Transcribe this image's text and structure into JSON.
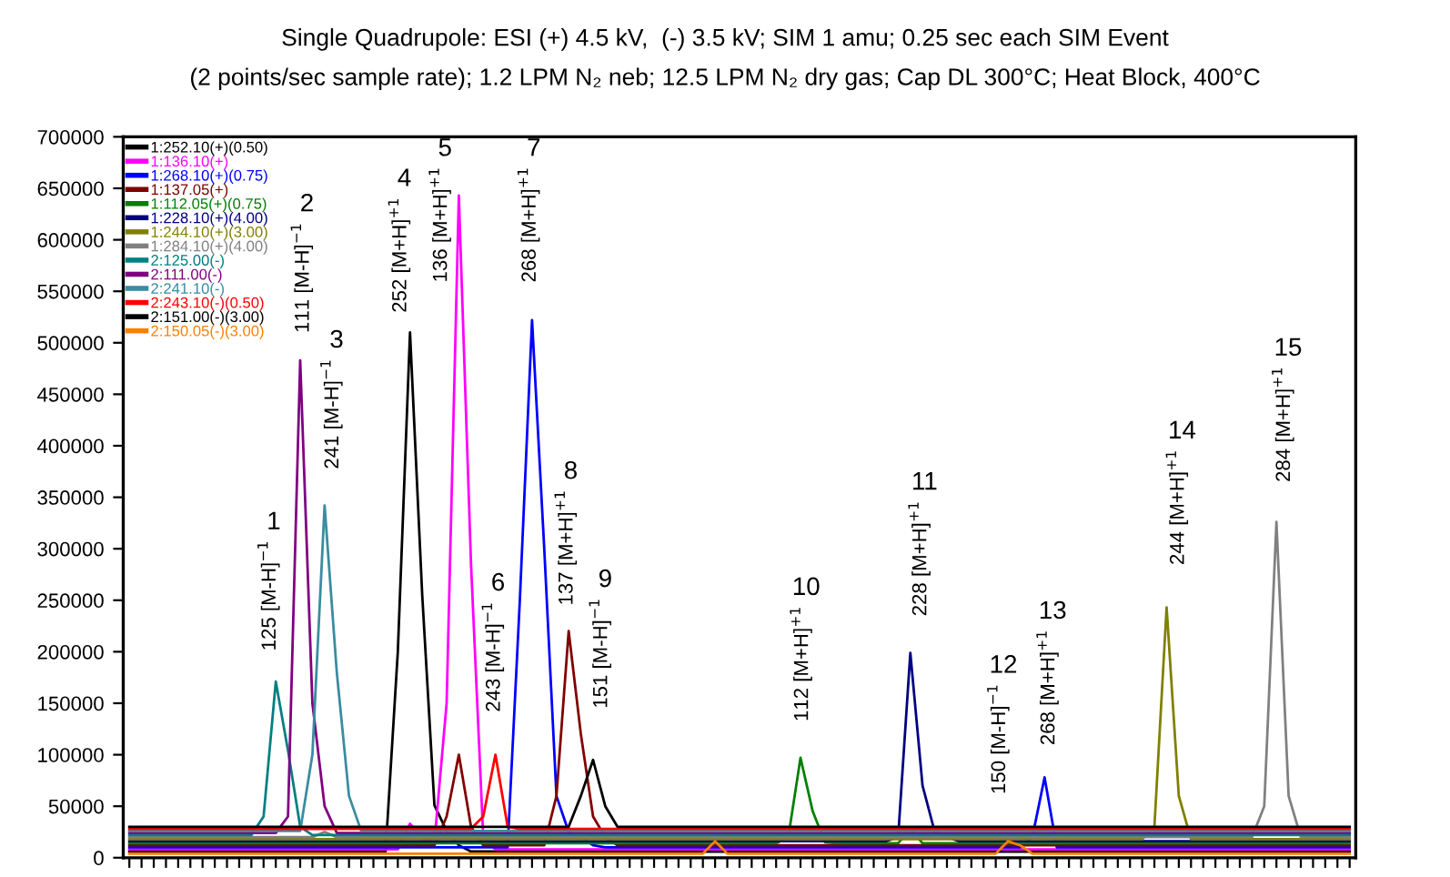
{
  "chart_data": {
    "type": "line",
    "title": "Single Quadrupole: ESI (+) 4.5 kV,  (-) 3.5 kV; SIM 1 amu; 0.25 sec each SIM Event",
    "subtitle": "(2 points/sec sample rate); 1.2 LPM N₂ neb; 12.5 LPM N₂ dry gas; Cap DL 300°C; Heat Block, 400°C",
    "categories": [
      null,
      null,
      null,
      null,
      null,
      null,
      null,
      null,
      null,
      null,
      null,
      null,
      null,
      null,
      null,
      null,
      null,
      null,
      null,
      null,
      null,
      null,
      null,
      null,
      null,
      null,
      null,
      null,
      null,
      null,
      null,
      null,
      null,
      null,
      null,
      null,
      null,
      null,
      null,
      null,
      null,
      null,
      null,
      null,
      null,
      null,
      null,
      null,
      null,
      null,
      null,
      null,
      null,
      null,
      null,
      null,
      null,
      null,
      null,
      null,
      null,
      null,
      null,
      null,
      null,
      null,
      null,
      null,
      null,
      null,
      null,
      null,
      null,
      null,
      null,
      null,
      null,
      null,
      null,
      null,
      null,
      null,
      null,
      null,
      null,
      null,
      null,
      null,
      null,
      null,
      null,
      null,
      null,
      null,
      null,
      null,
      null,
      null,
      null,
      null,
      null
    ],
    "ylim": [
      0,
      700000
    ],
    "yticks": [
      0,
      50000,
      100000,
      150000,
      200000,
      250000,
      300000,
      350000,
      400000,
      450000,
      500000,
      550000,
      600000,
      650000,
      700000
    ],
    "tick_labels": "y",
    "grid": false,
    "legend": "top left",
    "marker": "none",
    "line_style": "solid",
    "series": [
      {
        "name": "1:252.10(+)(0.50)",
        "color": "#000000",
        "values": [
          6000,
          6000,
          6000,
          6000,
          6000,
          6000,
          6000,
          6000,
          6000,
          6000,
          6000,
          6000,
          6000,
          6000,
          6000,
          6000,
          6000,
          6000,
          6000,
          6000,
          6000,
          6000,
          200000,
          510000,
          255000,
          51000,
          26000,
          12000,
          6000,
          6000,
          6000,
          6000,
          6000,
          6000,
          6000,
          6000,
          6000,
          6000,
          6000,
          6000,
          6000,
          6000,
          6000,
          6000,
          6000,
          6000,
          6000,
          6000,
          6000,
          6000,
          6000,
          6000,
          6000,
          6000,
          6000,
          6000,
          6000,
          6000,
          6000,
          6000,
          6000,
          6000,
          6000,
          6000,
          6000,
          6000,
          6000,
          6000,
          6000,
          6000,
          6000,
          6000,
          6000,
          6000,
          6000,
          6000,
          6000,
          6000,
          6000,
          6000,
          6000,
          6000,
          6000,
          6000,
          6000,
          6000,
          6000,
          6000,
          6000,
          6000,
          6000,
          6000,
          6000,
          6000,
          6000,
          6000,
          6000,
          6000,
          6000,
          6000,
          6000
        ]
      },
      {
        "name": "1:136.10(+)",
        "color": "#ff00ff",
        "values": [
          8000,
          8000,
          8000,
          8000,
          8000,
          8000,
          8000,
          8000,
          8000,
          8000,
          8000,
          8000,
          8000,
          8000,
          8000,
          8000,
          8000,
          8000,
          8000,
          8000,
          8000,
          8000,
          8000,
          33000,
          18000,
          15000,
          150000,
          643000,
          285000,
          20000,
          8000,
          8000,
          8000,
          8000,
          8000,
          8000,
          8000,
          8000,
          8000,
          8000,
          8000,
          8000,
          8000,
          8000,
          8000,
          8000,
          8000,
          8000,
          8000,
          8000,
          8000,
          8000,
          8000,
          8000,
          8000,
          8000,
          8000,
          8000,
          8000,
          8000,
          8000,
          8000,
          8000,
          8000,
          8000,
          8000,
          8000,
          8000,
          8000,
          8000,
          8000,
          8000,
          8000,
          8000,
          8000,
          8000,
          8000,
          8000,
          8000,
          8000,
          8000,
          8000,
          8000,
          8000,
          8000,
          8000,
          8000,
          8000,
          8000,
          8000,
          8000,
          8000,
          8000,
          8000,
          8000,
          8000,
          8000,
          8000,
          8000,
          8000,
          8000
        ]
      },
      {
        "name": "1:268.10(+)(0.75)",
        "color": "#0000ff",
        "values": [
          10000,
          10000,
          10000,
          10000,
          10000,
          10000,
          10000,
          10000,
          10000,
          10000,
          10000,
          10000,
          10000,
          10000,
          10000,
          10000,
          10000,
          10000,
          10000,
          10000,
          10000,
          10000,
          10000,
          10000,
          10000,
          10000,
          10000,
          10000,
          10000,
          10000,
          10000,
          10000,
          250000,
          522000,
          300000,
          60000,
          25000,
          20000,
          12000,
          10000,
          10000,
          10000,
          10000,
          10000,
          10000,
          10000,
          10000,
          10000,
          10000,
          10000,
          10000,
          10000,
          10000,
          10000,
          10000,
          10000,
          10000,
          10000,
          10000,
          10000,
          10000,
          10000,
          10000,
          10000,
          10000,
          10000,
          10000,
          10000,
          10000,
          10000,
          10000,
          10000,
          10000,
          10000,
          20000,
          78000,
          10000,
          10000,
          10000,
          10000,
          10000,
          10000,
          10000,
          10000,
          10000,
          10000,
          10000,
          10000,
          10000,
          10000,
          10000,
          10000,
          10000,
          10000,
          10000,
          10000,
          10000,
          10000,
          10000,
          10000,
          10000
        ]
      },
      {
        "name": "1:137.05(+)",
        "color": "#800000",
        "values": [
          12000,
          12000,
          12000,
          12000,
          12000,
          12000,
          12000,
          12000,
          12000,
          12000,
          12000,
          12000,
          12000,
          12000,
          12000,
          12000,
          12000,
          12000,
          12000,
          12000,
          12000,
          12000,
          12000,
          12000,
          12000,
          12000,
          40000,
          100000,
          30000,
          12000,
          12000,
          12000,
          12000,
          12000,
          12000,
          60000,
          220000,
          120000,
          40000,
          20000,
          12000,
          12000,
          12000,
          12000,
          12000,
          12000,
          12000,
          12000,
          12000,
          12000,
          12000,
          12000,
          12000,
          12000,
          12000,
          12000,
          12000,
          12000,
          12000,
          12000,
          12000,
          12000,
          12000,
          12000,
          12000,
          12000,
          12000,
          12000,
          12000,
          12000,
          12000,
          12000,
          12000,
          12000,
          12000,
          12000,
          12000,
          12000,
          12000,
          12000,
          12000,
          12000,
          12000,
          12000,
          12000,
          12000,
          12000,
          12000,
          12000,
          12000,
          12000,
          12000,
          12000,
          12000,
          12000,
          12000,
          12000,
          12000,
          12000,
          12000,
          12000
        ]
      },
      {
        "name": "1:112.05(+)(0.75)",
        "color": "#008000",
        "values": [
          14000,
          14000,
          14000,
          14000,
          14000,
          14000,
          14000,
          14000,
          14000,
          14000,
          14000,
          14000,
          14000,
          14000,
          14000,
          14000,
          14000,
          14000,
          14000,
          14000,
          14000,
          14000,
          14000,
          14000,
          14000,
          14000,
          14000,
          14000,
          14000,
          14000,
          14000,
          14000,
          14000,
          14000,
          14000,
          14000,
          14000,
          14000,
          14000,
          14000,
          14000,
          14000,
          14000,
          14000,
          14000,
          14000,
          14000,
          14000,
          14000,
          14000,
          14000,
          14000,
          14000,
          14000,
          20000,
          97000,
          45000,
          15000,
          14000,
          14000,
          14000,
          14000,
          14000,
          14000,
          28000,
          14000,
          14000,
          14000,
          14000,
          14000,
          14000,
          14000,
          14000,
          14000,
          14000,
          14000,
          14000,
          14000,
          14000,
          14000,
          14000,
          14000,
          14000,
          14000,
          14000,
          14000,
          14000,
          14000,
          14000,
          14000,
          14000,
          14000,
          14000,
          14000,
          14000,
          14000,
          14000,
          14000,
          14000,
          14000,
          14000
        ]
      },
      {
        "name": "1:228.10(+)(4.00)",
        "color": "#000080",
        "values": [
          16000,
          16000,
          16000,
          16000,
          16000,
          16000,
          16000,
          16000,
          16000,
          16000,
          16000,
          16000,
          16000,
          16000,
          16000,
          16000,
          16000,
          16000,
          16000,
          16000,
          16000,
          16000,
          16000,
          16000,
          16000,
          16000,
          16000,
          16000,
          16000,
          16000,
          16000,
          16000,
          16000,
          16000,
          16000,
          16000,
          16000,
          16000,
          16000,
          16000,
          16000,
          16000,
          16000,
          16000,
          16000,
          16000,
          16000,
          16000,
          16000,
          16000,
          16000,
          16000,
          16000,
          16000,
          16000,
          16000,
          16000,
          16000,
          16000,
          16000,
          16000,
          16000,
          16000,
          20000,
          199000,
          70000,
          25000,
          20000,
          16000,
          16000,
          16000,
          16000,
          16000,
          16000,
          16000,
          16000,
          16000,
          16000,
          16000,
          16000,
          16000,
          16000,
          16000,
          16000,
          16000,
          16000,
          16000,
          16000,
          16000,
          16000,
          16000,
          16000,
          16000,
          16000,
          16000,
          16000,
          16000,
          16000,
          16000,
          16000,
          16000
        ]
      },
      {
        "name": "1:244.10(+)(3.00)",
        "color": "#808000",
        "values": [
          18000,
          18000,
          18000,
          18000,
          18000,
          18000,
          18000,
          18000,
          18000,
          18000,
          18000,
          18000,
          18000,
          18000,
          18000,
          18000,
          18000,
          18000,
          18000,
          18000,
          18000,
          18000,
          18000,
          18000,
          18000,
          18000,
          18000,
          18000,
          18000,
          18000,
          18000,
          18000,
          18000,
          18000,
          18000,
          18000,
          18000,
          18000,
          18000,
          18000,
          18000,
          18000,
          18000,
          18000,
          18000,
          18000,
          18000,
          18000,
          18000,
          18000,
          18000,
          18000,
          18000,
          18000,
          18000,
          18000,
          18000,
          18000,
          18000,
          18000,
          18000,
          18000,
          18000,
          18000,
          18000,
          18000,
          18000,
          18000,
          18000,
          18000,
          18000,
          18000,
          18000,
          18000,
          18000,
          18000,
          18000,
          18000,
          18000,
          18000,
          18000,
          18000,
          18000,
          18000,
          30000,
          243000,
          60000,
          18000,
          18000,
          18000,
          18000,
          18000,
          18000,
          18000,
          18000,
          18000,
          18000,
          18000,
          18000,
          18000,
          18000
        ]
      },
      {
        "name": "1:284.10(+)(4.00)",
        "color": "#808080",
        "values": [
          20000,
          20000,
          20000,
          20000,
          20000,
          20000,
          20000,
          20000,
          20000,
          20000,
          20000,
          20000,
          20000,
          20000,
          20000,
          20000,
          25000,
          20000,
          20000,
          20000,
          20000,
          20000,
          20000,
          20000,
          20000,
          20000,
          20000,
          20000,
          20000,
          20000,
          20000,
          20000,
          20000,
          20000,
          20000,
          20000,
          20000,
          20000,
          20000,
          20000,
          20000,
          20000,
          20000,
          20000,
          20000,
          20000,
          20000,
          20000,
          20000,
          20000,
          20000,
          20000,
          20000,
          20000,
          20000,
          20000,
          20000,
          20000,
          20000,
          20000,
          20000,
          20000,
          20000,
          20000,
          20000,
          20000,
          20000,
          20000,
          20000,
          20000,
          20000,
          20000,
          20000,
          20000,
          20000,
          20000,
          20000,
          20000,
          20000,
          20000,
          20000,
          20000,
          20000,
          20000,
          20000,
          20000,
          20000,
          20000,
          20000,
          20000,
          20000,
          20000,
          20000,
          50000,
          326000,
          60000,
          20000,
          20000,
          20000,
          20000,
          20000
        ]
      },
      {
        "name": "2:125.00(-)",
        "color": "#008080",
        "values": [
          22000,
          22000,
          22000,
          22000,
          22000,
          22000,
          22000,
          22000,
          22000,
          22000,
          22000,
          40000,
          171000,
          104000,
          30000,
          22000,
          22000,
          22000,
          22000,
          22000,
          22000,
          22000,
          22000,
          22000,
          22000,
          22000,
          22000,
          22000,
          22000,
          22000,
          22000,
          22000,
          22000,
          22000,
          22000,
          22000,
          22000,
          22000,
          22000,
          22000,
          22000,
          22000,
          22000,
          22000,
          22000,
          22000,
          22000,
          22000,
          22000,
          22000,
          22000,
          22000,
          22000,
          22000,
          22000,
          22000,
          22000,
          22000,
          22000,
          22000,
          22000,
          22000,
          22000,
          22000,
          22000,
          22000,
          22000,
          22000,
          22000,
          22000,
          22000,
          22000,
          22000,
          22000,
          22000,
          22000,
          22000,
          22000,
          22000,
          22000,
          22000,
          22000,
          22000,
          22000,
          22000,
          22000,
          22000,
          22000,
          22000,
          22000,
          22000,
          22000,
          22000,
          22000,
          22000,
          22000,
          22000,
          22000,
          22000,
          22000,
          22000
        ]
      },
      {
        "name": "2:111.00(-)",
        "color": "#800080",
        "values": [
          24000,
          24000,
          24000,
          24000,
          24000,
          24000,
          24000,
          24000,
          24000,
          24000,
          24000,
          24000,
          24000,
          40000,
          483000,
          150000,
          50000,
          24000,
          24000,
          24000,
          24000,
          24000,
          24000,
          24000,
          24000,
          24000,
          24000,
          24000,
          24000,
          24000,
          24000,
          24000,
          24000,
          24000,
          24000,
          24000,
          24000,
          24000,
          24000,
          24000,
          24000,
          24000,
          24000,
          24000,
          24000,
          24000,
          24000,
          24000,
          24000,
          24000,
          24000,
          24000,
          24000,
          24000,
          24000,
          24000,
          24000,
          24000,
          24000,
          24000,
          24000,
          24000,
          24000,
          24000,
          24000,
          24000,
          24000,
          24000,
          24000,
          24000,
          24000,
          24000,
          24000,
          24000,
          24000,
          24000,
          24000,
          24000,
          24000,
          24000,
          24000,
          24000,
          24000,
          24000,
          24000,
          24000,
          24000,
          24000,
          24000,
          24000,
          24000,
          24000,
          24000,
          24000,
          24000,
          24000,
          24000,
          24000,
          24000,
          24000,
          24000
        ]
      },
      {
        "name": "2:241.10(-)",
        "color": "#3a8ca0",
        "values": [
          26000,
          26000,
          26000,
          26000,
          26000,
          26000,
          26000,
          26000,
          26000,
          26000,
          26000,
          26000,
          26000,
          26000,
          26000,
          100000,
          342000,
          180000,
          60000,
          26000,
          26000,
          26000,
          26000,
          26000,
          26000,
          26000,
          26000,
          26000,
          26000,
          26000,
          26000,
          26000,
          26000,
          26000,
          26000,
          26000,
          26000,
          26000,
          26000,
          26000,
          26000,
          26000,
          26000,
          26000,
          26000,
          26000,
          26000,
          26000,
          26000,
          26000,
          26000,
          26000,
          26000,
          26000,
          26000,
          26000,
          26000,
          26000,
          26000,
          26000,
          26000,
          26000,
          26000,
          26000,
          26000,
          26000,
          26000,
          26000,
          26000,
          26000,
          26000,
          26000,
          26000,
          26000,
          26000,
          26000,
          26000,
          26000,
          26000,
          26000,
          26000,
          26000,
          26000,
          26000,
          26000,
          26000,
          26000,
          26000,
          26000,
          26000,
          26000,
          26000,
          26000,
          26000,
          26000,
          26000,
          26000,
          26000,
          26000,
          26000,
          26000
        ]
      },
      {
        "name": "2:243.10(-)(0.50)",
        "color": "#ff0000",
        "values": [
          28000,
          28000,
          28000,
          28000,
          28000,
          28000,
          28000,
          28000,
          28000,
          28000,
          28000,
          28000,
          28000,
          28000,
          28000,
          28000,
          28000,
          28000,
          28000,
          28000,
          28000,
          28000,
          28000,
          28000,
          28000,
          28000,
          28000,
          28000,
          28000,
          40000,
          100000,
          30000,
          28000,
          28000,
          28000,
          28000,
          28000,
          28000,
          28000,
          28000,
          28000,
          28000,
          28000,
          28000,
          28000,
          28000,
          28000,
          28000,
          28000,
          28000,
          28000,
          28000,
          28000,
          28000,
          28000,
          28000,
          28000,
          28000,
          28000,
          28000,
          28000,
          28000,
          28000,
          28000,
          28000,
          28000,
          28000,
          28000,
          28000,
          28000,
          28000,
          28000,
          28000,
          28000,
          28000,
          28000,
          28000,
          28000,
          28000,
          28000,
          28000,
          28000,
          28000,
          28000,
          28000,
          28000,
          28000,
          28000,
          28000,
          28000,
          28000,
          28000,
          28000,
          28000,
          28000,
          28000,
          28000,
          28000,
          28000,
          28000,
          28000
        ]
      },
      {
        "name": "2:151.00(-)(3.00)",
        "color": "#000000",
        "values": [
          30000,
          30000,
          30000,
          30000,
          30000,
          30000,
          30000,
          30000,
          30000,
          30000,
          30000,
          30000,
          30000,
          30000,
          30000,
          30000,
          30000,
          30000,
          30000,
          30000,
          30000,
          30000,
          30000,
          30000,
          30000,
          30000,
          30000,
          30000,
          30000,
          30000,
          30000,
          30000,
          30000,
          30000,
          30000,
          30000,
          30000,
          60000,
          95000,
          50000,
          30000,
          30000,
          30000,
          30000,
          30000,
          30000,
          30000,
          30000,
          30000,
          30000,
          30000,
          30000,
          30000,
          30000,
          30000,
          30000,
          30000,
          30000,
          30000,
          30000,
          30000,
          30000,
          30000,
          30000,
          30000,
          30000,
          30000,
          30000,
          30000,
          30000,
          30000,
          30000,
          30000,
          30000,
          30000,
          30000,
          30000,
          30000,
          30000,
          30000,
          30000,
          30000,
          30000,
          30000,
          30000,
          30000,
          30000,
          30000,
          30000,
          30000,
          30000,
          30000,
          30000,
          30000,
          30000,
          30000,
          30000,
          30000,
          30000,
          30000,
          30000
        ]
      },
      {
        "name": "2:150.05(-)(3.00)",
        "color": "#ff7f00",
        "values": [
          4000,
          4000,
          4000,
          4000,
          4000,
          4000,
          4000,
          4000,
          4000,
          4000,
          4000,
          4000,
          4000,
          4000,
          4000,
          4000,
          4000,
          4000,
          4000,
          4000,
          4000,
          4000,
          4000,
          4000,
          4000,
          4000,
          4000,
          4000,
          4000,
          4000,
          4000,
          4000,
          4000,
          4000,
          4000,
          4000,
          4000,
          4000,
          4000,
          4000,
          4000,
          4000,
          4000,
          4000,
          4000,
          4000,
          4000,
          4000,
          16000,
          4000,
          4000,
          4000,
          4000,
          4000,
          4000,
          4000,
          4000,
          4000,
          4000,
          4000,
          4000,
          4000,
          4000,
          4000,
          4000,
          4000,
          4000,
          4000,
          4000,
          4000,
          4000,
          4000,
          16000,
          12000,
          4000,
          4000,
          4000,
          4000,
          4000,
          4000,
          4000,
          4000,
          4000,
          4000,
          4000,
          4000,
          4000,
          4000,
          4000,
          4000,
          4000,
          4000,
          4000,
          4000,
          4000,
          4000,
          4000,
          4000,
          4000,
          4000,
          4000
        ]
      }
    ],
    "annotations": [
      "1",
      "125 [M-H]$^{−1}$",
      "2",
      "111 [M-H]$^{−1}$",
      "3",
      "241 [M-H]$^{−1}$",
      "4",
      "252 [M+H]$^{+1}$",
      "5",
      "136 [M+H]$^{+1}$",
      "6",
      "243 [M-H]$^{−1}$",
      "7",
      "268 [M+H]$^{+1}$",
      "8",
      "137 [M+H]$^{+1}$",
      "9",
      "151 [M-H]$^{−1}$",
      "10",
      "112 [M+H]$^{+1}$",
      "11",
      "228 [M+H]$^{+1}$",
      "12",
      "150 [M-H]$^{−1}$",
      "13",
      "268 [M+H]$^{+1}$",
      "14",
      "244 [M+H]$^{+1}$",
      "15",
      "284 [M+H]$^{+1}$"
    ]
  }
}
